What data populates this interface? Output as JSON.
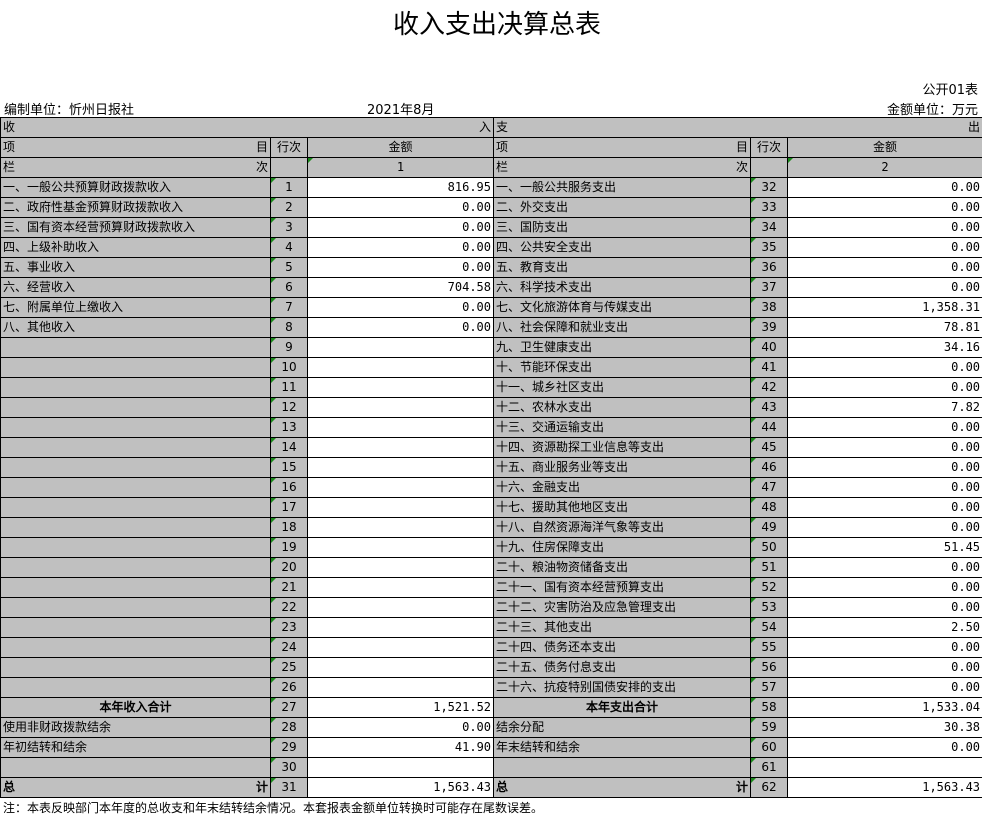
{
  "title": "收入支出决算总表",
  "form_no": "公开01表",
  "unit": "金额单位：万元",
  "org": "编制单位：忻州日报社",
  "period": "2021年8月",
  "header": {
    "income_l": "收",
    "income_r": "入",
    "exp_l": "支",
    "exp_r": "出",
    "item_l": "项",
    "item_r": "目",
    "row_no": "行次",
    "amount": "金额",
    "col_l": "栏",
    "col_r": "次",
    "col1": "1",
    "col2": "2"
  },
  "left_rows": [
    {
      "label": "一、一般公共预算财政拨款收入",
      "no": "1",
      "amount": "816.95"
    },
    {
      "label": "二、政府性基金预算财政拨款收入",
      "no": "2",
      "amount": "0.00"
    },
    {
      "label": "三、国有资本经营预算财政拨款收入",
      "no": "3",
      "amount": "0.00"
    },
    {
      "label": "四、上级补助收入",
      "no": "4",
      "amount": "0.00"
    },
    {
      "label": "五、事业收入",
      "no": "5",
      "amount": "0.00"
    },
    {
      "label": "六、经营收入",
      "no": "6",
      "amount": "704.58"
    },
    {
      "label": "七、附属单位上缴收入",
      "no": "7",
      "amount": "0.00"
    },
    {
      "label": "八、其他收入",
      "no": "8",
      "amount": "0.00"
    },
    {
      "label": "",
      "no": "9",
      "amount": ""
    },
    {
      "label": "",
      "no": "10",
      "amount": ""
    },
    {
      "label": "",
      "no": "11",
      "amount": ""
    },
    {
      "label": "",
      "no": "12",
      "amount": ""
    },
    {
      "label": "",
      "no": "13",
      "amount": ""
    },
    {
      "label": "",
      "no": "14",
      "amount": ""
    },
    {
      "label": "",
      "no": "15",
      "amount": ""
    },
    {
      "label": "",
      "no": "16",
      "amount": ""
    },
    {
      "label": "",
      "no": "17",
      "amount": ""
    },
    {
      "label": "",
      "no": "18",
      "amount": ""
    },
    {
      "label": "",
      "no": "19",
      "amount": ""
    },
    {
      "label": "",
      "no": "20",
      "amount": ""
    },
    {
      "label": "",
      "no": "21",
      "amount": ""
    },
    {
      "label": "",
      "no": "22",
      "amount": ""
    },
    {
      "label": "",
      "no": "23",
      "amount": ""
    },
    {
      "label": "",
      "no": "24",
      "amount": ""
    },
    {
      "label": "",
      "no": "25",
      "amount": ""
    },
    {
      "label": "",
      "no": "26",
      "amount": ""
    },
    {
      "label": "本年收入合计",
      "no": "27",
      "amount": "1,521.52",
      "total": true
    },
    {
      "label": "使用非财政拨款结余",
      "no": "28",
      "amount": "0.00"
    },
    {
      "label": "年初结转和结余",
      "no": "29",
      "amount": "41.90"
    },
    {
      "label": "",
      "no": "30",
      "amount": ""
    },
    {
      "label": "总",
      "label_r": "计",
      "no": "31",
      "amount": "1,563.43",
      "grand": true
    }
  ],
  "right_rows": [
    {
      "label": "一、一般公共服务支出",
      "no": "32",
      "amount": "0.00"
    },
    {
      "label": "二、外交支出",
      "no": "33",
      "amount": "0.00"
    },
    {
      "label": "三、国防支出",
      "no": "34",
      "amount": "0.00"
    },
    {
      "label": "四、公共安全支出",
      "no": "35",
      "amount": "0.00"
    },
    {
      "label": "五、教育支出",
      "no": "36",
      "amount": "0.00"
    },
    {
      "label": "六、科学技术支出",
      "no": "37",
      "amount": "0.00"
    },
    {
      "label": "七、文化旅游体育与传媒支出",
      "no": "38",
      "amount": "1,358.31"
    },
    {
      "label": "八、社会保障和就业支出",
      "no": "39",
      "amount": "78.81"
    },
    {
      "label": "九、卫生健康支出",
      "no": "40",
      "amount": "34.16"
    },
    {
      "label": "十、节能环保支出",
      "no": "41",
      "amount": "0.00"
    },
    {
      "label": "十一、城乡社区支出",
      "no": "42",
      "amount": "0.00"
    },
    {
      "label": "十二、农林水支出",
      "no": "43",
      "amount": "7.82"
    },
    {
      "label": "十三、交通运输支出",
      "no": "44",
      "amount": "0.00"
    },
    {
      "label": "十四、资源勘探工业信息等支出",
      "no": "45",
      "amount": "0.00"
    },
    {
      "label": "十五、商业服务业等支出",
      "no": "46",
      "amount": "0.00"
    },
    {
      "label": "十六、金融支出",
      "no": "47",
      "amount": "0.00"
    },
    {
      "label": "十七、援助其他地区支出",
      "no": "48",
      "amount": "0.00"
    },
    {
      "label": "十八、自然资源海洋气象等支出",
      "no": "49",
      "amount": "0.00"
    },
    {
      "label": "十九、住房保障支出",
      "no": "50",
      "amount": "51.45"
    },
    {
      "label": "二十、粮油物资储备支出",
      "no": "51",
      "amount": "0.00"
    },
    {
      "label": "二十一、国有资本经营预算支出",
      "no": "52",
      "amount": "0.00"
    },
    {
      "label": "二十二、灾害防治及应急管理支出",
      "no": "53",
      "amount": "0.00"
    },
    {
      "label": "二十三、其他支出",
      "no": "54",
      "amount": "2.50"
    },
    {
      "label": "二十四、债务还本支出",
      "no": "55",
      "amount": "0.00"
    },
    {
      "label": "二十五、债务付息支出",
      "no": "56",
      "amount": "0.00"
    },
    {
      "label": "二十六、抗疫特别国债安排的支出",
      "no": "57",
      "amount": "0.00"
    },
    {
      "label": "本年支出合计",
      "no": "58",
      "amount": "1,533.04",
      "total": true
    },
    {
      "label": "结余分配",
      "no": "59",
      "amount": "30.38"
    },
    {
      "label": "年末结转和结余",
      "no": "60",
      "amount": "0.00"
    },
    {
      "label": "",
      "no": "61",
      "amount": ""
    },
    {
      "label": "总",
      "label_r": "计",
      "no": "62",
      "amount": "1,563.43",
      "grand": true
    }
  ],
  "note": "注：本表反映部门本年度的总收支和年末结转结余情况。本套报表金额单位转换时可能存在尾数误差。",
  "colors": {
    "header_gray": "#c0c0c0",
    "marker_green": "#1a8a1a"
  }
}
